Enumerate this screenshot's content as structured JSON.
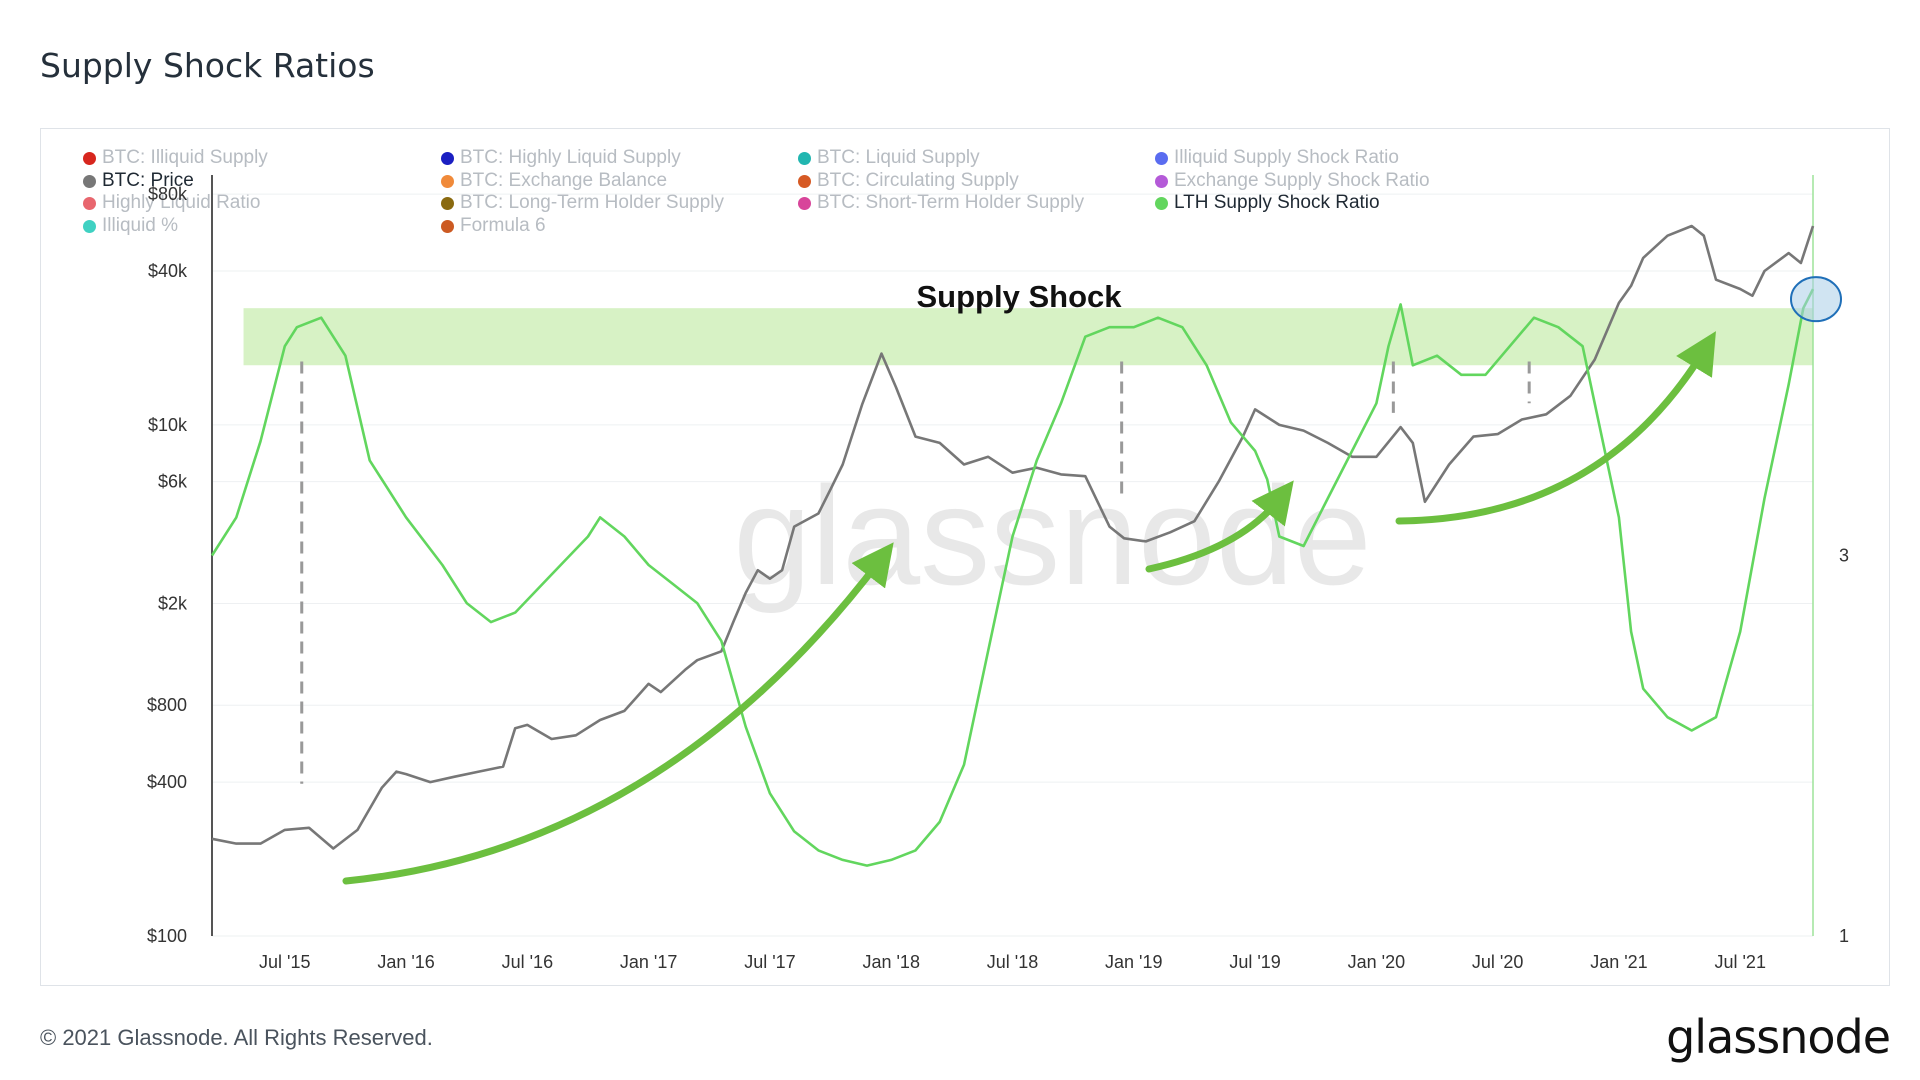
{
  "page": {
    "title": "Supply Shock Ratios",
    "copyright": "© 2021 Glassnode. All Rights Reserved.",
    "logo": "glassnode",
    "watermark": "glassnode"
  },
  "legend": [
    {
      "label": "BTC: Illiquid Supply",
      "color": "#d7261e",
      "active": false
    },
    {
      "label": "BTC: Highly Liquid Supply",
      "color": "#1b1fc2",
      "active": false
    },
    {
      "label": "BTC: Liquid Supply",
      "color": "#21b6b0",
      "active": false
    },
    {
      "label": "Illiquid Supply Shock Ratio",
      "color": "#5a6cf0",
      "active": false
    },
    {
      "label": "BTC: Price",
      "color": "#777777",
      "active": true
    },
    {
      "label": "BTC: Exchange Balance",
      "color": "#f08a3a",
      "active": false
    },
    {
      "label": "BTC: Circulating Supply",
      "color": "#d65a24",
      "active": false
    },
    {
      "label": "Exchange Supply Shock Ratio",
      "color": "#b45ad8",
      "active": false
    },
    {
      "label": "Highly Liquid Ratio",
      "color": "#e8666e",
      "active": false
    },
    {
      "label": "BTC: Long-Term Holder Supply",
      "color": "#8a6a10",
      "active": false
    },
    {
      "label": "BTC: Short-Term Holder Supply",
      "color": "#d8459a",
      "active": false
    },
    {
      "label": "LTH Supply Shock Ratio",
      "color": "#62d65e",
      "active": true
    },
    {
      "label": "Illiquid %",
      "color": "#3fd1c2",
      "active": false
    },
    {
      "label": "Formula 6",
      "color": "#cc5a22",
      "active": false
    }
  ],
  "chart_data": {
    "type": "line",
    "title": "Supply Shock Ratios",
    "annotation": "Supply Shock",
    "x_ticks": [
      "Jul '15",
      "Jan '16",
      "Jul '16",
      "Jan '17",
      "Jul '17",
      "Jan '18",
      "Jul '18",
      "Jan '19",
      "Jul '19",
      "Jan '20",
      "Jul '20",
      "Jan '21",
      "Jul '21"
    ],
    "x_range": [
      2015.2,
      2021.8
    ],
    "y_left": {
      "scale": "log",
      "ticks": [
        "$100",
        "$400",
        "$800",
        "$2k",
        "$6k",
        "$10k",
        "$40k",
        "$80k"
      ],
      "tick_values": [
        100,
        400,
        800,
        2000,
        6000,
        10000,
        40000,
        80000
      ],
      "range": [
        100,
        95000
      ]
    },
    "y_right": {
      "scale": "linear",
      "ticks": [
        "1",
        "3"
      ],
      "tick_values": [
        1,
        3
      ],
      "range": [
        1,
        5
      ]
    },
    "supply_shock_band": {
      "y_right": [
        4.0,
        4.3
      ]
    },
    "series": [
      {
        "name": "BTC: Price",
        "axis": "left",
        "color": "#777777",
        "points": [
          [
            2015.2,
            240
          ],
          [
            2015.3,
            230
          ],
          [
            2015.4,
            230
          ],
          [
            2015.5,
            260
          ],
          [
            2015.6,
            265
          ],
          [
            2015.7,
            220
          ],
          [
            2015.8,
            260
          ],
          [
            2015.9,
            380
          ],
          [
            2015.96,
            440
          ],
          [
            2016.0,
            430
          ],
          [
            2016.1,
            400
          ],
          [
            2016.2,
            420
          ],
          [
            2016.3,
            440
          ],
          [
            2016.4,
            460
          ],
          [
            2016.45,
            650
          ],
          [
            2016.5,
            670
          ],
          [
            2016.6,
            590
          ],
          [
            2016.7,
            610
          ],
          [
            2016.8,
            700
          ],
          [
            2016.9,
            760
          ],
          [
            2017.0,
            970
          ],
          [
            2017.05,
            900
          ],
          [
            2017.15,
            1100
          ],
          [
            2017.2,
            1200
          ],
          [
            2017.3,
            1300
          ],
          [
            2017.35,
            1700
          ],
          [
            2017.4,
            2200
          ],
          [
            2017.45,
            2700
          ],
          [
            2017.5,
            2500
          ],
          [
            2017.55,
            2700
          ],
          [
            2017.6,
            4000
          ],
          [
            2017.7,
            4500
          ],
          [
            2017.75,
            5600
          ],
          [
            2017.8,
            7000
          ],
          [
            2017.88,
            12000
          ],
          [
            2017.96,
            19000
          ],
          [
            2018.02,
            14000
          ],
          [
            2018.1,
            9000
          ],
          [
            2018.2,
            8500
          ],
          [
            2018.3,
            7000
          ],
          [
            2018.4,
            7500
          ],
          [
            2018.5,
            6500
          ],
          [
            2018.6,
            6800
          ],
          [
            2018.7,
            6400
          ],
          [
            2018.8,
            6300
          ],
          [
            2018.9,
            4000
          ],
          [
            2018.96,
            3600
          ],
          [
            2019.05,
            3500
          ],
          [
            2019.15,
            3800
          ],
          [
            2019.25,
            4200
          ],
          [
            2019.35,
            6000
          ],
          [
            2019.45,
            9000
          ],
          [
            2019.5,
            11500
          ],
          [
            2019.6,
            10000
          ],
          [
            2019.7,
            9500
          ],
          [
            2019.8,
            8500
          ],
          [
            2019.9,
            7500
          ],
          [
            2020.0,
            7500
          ],
          [
            2020.1,
            9800
          ],
          [
            2020.15,
            8500
          ],
          [
            2020.2,
            5000
          ],
          [
            2020.3,
            7000
          ],
          [
            2020.4,
            9000
          ],
          [
            2020.5,
            9200
          ],
          [
            2020.6,
            10500
          ],
          [
            2020.7,
            11000
          ],
          [
            2020.8,
            13000
          ],
          [
            2020.9,
            18000
          ],
          [
            2021.0,
            30000
          ],
          [
            2021.05,
            35000
          ],
          [
            2021.1,
            45000
          ],
          [
            2021.2,
            55000
          ],
          [
            2021.3,
            60000
          ],
          [
            2021.35,
            55000
          ],
          [
            2021.4,
            37000
          ],
          [
            2021.5,
            34000
          ],
          [
            2021.55,
            32000
          ],
          [
            2021.6,
            40000
          ],
          [
            2021.7,
            47000
          ],
          [
            2021.75,
            43000
          ],
          [
            2021.8,
            60000
          ]
        ]
      },
      {
        "name": "LTH Supply Shock Ratio",
        "axis": "right",
        "color": "#62d65e",
        "points": [
          [
            2015.2,
            3.0
          ],
          [
            2015.3,
            3.2
          ],
          [
            2015.4,
            3.6
          ],
          [
            2015.5,
            4.1
          ],
          [
            2015.55,
            4.2
          ],
          [
            2015.65,
            4.25
          ],
          [
            2015.75,
            4.05
          ],
          [
            2015.85,
            3.5
          ],
          [
            2016.0,
            3.2
          ],
          [
            2016.15,
            2.95
          ],
          [
            2016.25,
            2.75
          ],
          [
            2016.35,
            2.65
          ],
          [
            2016.45,
            2.7
          ],
          [
            2016.6,
            2.9
          ],
          [
            2016.75,
            3.1
          ],
          [
            2016.8,
            3.2
          ],
          [
            2016.9,
            3.1
          ],
          [
            2017.0,
            2.95
          ],
          [
            2017.1,
            2.85
          ],
          [
            2017.2,
            2.75
          ],
          [
            2017.3,
            2.55
          ],
          [
            2017.4,
            2.1
          ],
          [
            2017.5,
            1.75
          ],
          [
            2017.6,
            1.55
          ],
          [
            2017.7,
            1.45
          ],
          [
            2017.8,
            1.4
          ],
          [
            2017.9,
            1.37
          ],
          [
            2018.0,
            1.4
          ],
          [
            2018.1,
            1.45
          ],
          [
            2018.2,
            1.6
          ],
          [
            2018.3,
            1.9
          ],
          [
            2018.4,
            2.5
          ],
          [
            2018.5,
            3.1
          ],
          [
            2018.6,
            3.5
          ],
          [
            2018.7,
            3.8
          ],
          [
            2018.8,
            4.15
          ],
          [
            2018.9,
            4.2
          ],
          [
            2019.0,
            4.2
          ],
          [
            2019.1,
            4.25
          ],
          [
            2019.2,
            4.2
          ],
          [
            2019.3,
            4.0
          ],
          [
            2019.4,
            3.7
          ],
          [
            2019.5,
            3.55
          ],
          [
            2019.55,
            3.4
          ],
          [
            2019.6,
            3.1
          ],
          [
            2019.7,
            3.05
          ],
          [
            2019.8,
            3.3
          ],
          [
            2019.9,
            3.55
          ],
          [
            2020.0,
            3.8
          ],
          [
            2020.05,
            4.1
          ],
          [
            2020.1,
            4.32
          ],
          [
            2020.15,
            4.0
          ],
          [
            2020.25,
            4.05
          ],
          [
            2020.35,
            3.95
          ],
          [
            2020.45,
            3.95
          ],
          [
            2020.55,
            4.1
          ],
          [
            2020.65,
            4.25
          ],
          [
            2020.75,
            4.2
          ],
          [
            2020.85,
            4.1
          ],
          [
            2020.9,
            3.8
          ],
          [
            2021.0,
            3.2
          ],
          [
            2021.05,
            2.6
          ],
          [
            2021.1,
            2.3
          ],
          [
            2021.2,
            2.15
          ],
          [
            2021.3,
            2.08
          ],
          [
            2021.4,
            2.15
          ],
          [
            2021.5,
            2.6
          ],
          [
            2021.6,
            3.3
          ],
          [
            2021.7,
            3.9
          ],
          [
            2021.76,
            4.3
          ],
          [
            2021.8,
            4.4
          ]
        ]
      }
    ]
  }
}
